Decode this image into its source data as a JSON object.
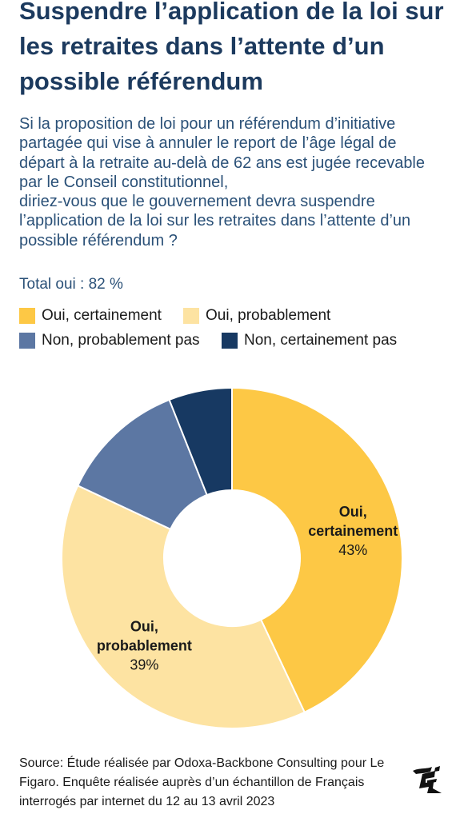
{
  "title": "Suspendre l’application de la loi sur les retraites dans l’attente d’un possible référendum",
  "question_lines": [
    "Si la proposition de loi pour un référendum d’initiative",
    "partagée qui vise à annuler le report de l’âge légal de",
    "départ à la retraite au-delà de 62 ans est jugée recevable",
    "par le Conseil constitutionnel,",
    "diriez-vous que le gouvernement devra suspendre",
    "l’application de la loi sur les retraites dans l’attente d’un",
    "possible référendum ?"
  ],
  "total": "Total oui : 82 %",
  "colors": {
    "title": "#1c3a5e",
    "oui_certainement": "#fdc845",
    "oui_probablement": "#fde3a2",
    "non_probablement_pas": "#5c77a3",
    "non_certainement_pas": "#173962"
  },
  "chart_data": {
    "type": "pie",
    "donut": true,
    "legend_position": "top",
    "categories": [
      "Oui, certainement",
      "Oui, probablement",
      "Non, probablement pas",
      "Non, certainement pas"
    ],
    "values": [
      43,
      39,
      12,
      6
    ],
    "slice_labels": [
      {
        "lines": [
          "Oui,",
          "certainement"
        ],
        "value": "43%"
      },
      {
        "lines": [
          "Oui,",
          "probablement"
        ],
        "value": "39%"
      },
      null,
      null
    ]
  },
  "source": "Source: Étude réalisée par Odoxa-Backbone Consulting pour Le Figaro. Enquête réalisée auprès d’un échantillon de Français interrogés par internet du 12 au 13 avril 2023",
  "logo_icon": "le-figaro-logo-icon"
}
